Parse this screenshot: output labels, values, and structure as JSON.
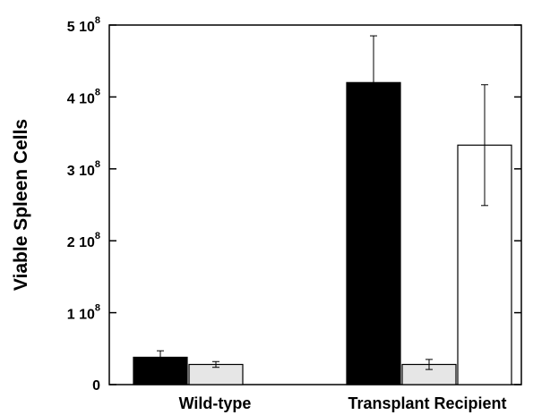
{
  "chart_data": {
    "type": "bar",
    "title": "",
    "xlabel": "",
    "ylabel": "Viable Spleen Cells",
    "ylim": [
      0,
      500000000
    ],
    "categories": [
      "Wild-type",
      "Transplant Recipient"
    ],
    "y_ticks": [
      {
        "mantissa": "0",
        "exponent": "",
        "value": 0
      },
      {
        "mantissa": "1 10",
        "exponent": "8",
        "value": 100000000
      },
      {
        "mantissa": "2 10",
        "exponent": "8",
        "value": 200000000
      },
      {
        "mantissa": "3 10",
        "exponent": "8",
        "value": 300000000
      },
      {
        "mantissa": "4 10",
        "exponent": "8",
        "value": 400000000
      },
      {
        "mantissa": "5 10",
        "exponent": "8",
        "value": 500000000
      }
    ],
    "series": [
      {
        "fill": "#000000",
        "values": [
          38000000,
          420000000
        ],
        "errors": [
          9000000,
          65000000
        ]
      },
      {
        "fill": "#e6e6e6",
        "values": [
          28000000,
          28000000
        ],
        "errors": [
          4000000,
          7000000
        ]
      },
      {
        "fill": "#ffffff",
        "values": [
          null,
          333000000
        ],
        "errors": [
          null,
          84000000
        ]
      }
    ],
    "grid": false,
    "legend": "none"
  }
}
